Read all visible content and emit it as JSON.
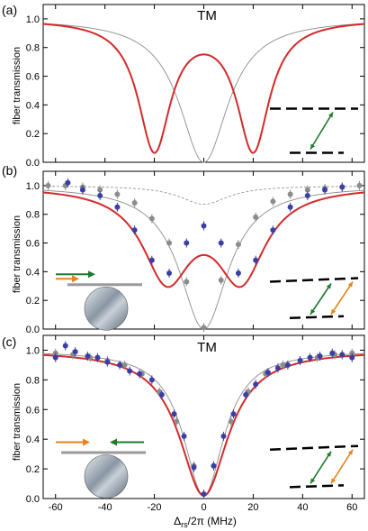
{
  "chart_data": [
    {
      "panel": "(a)",
      "type": "line",
      "title": "TM",
      "ylabel": "fiber transmission",
      "xlim": [
        -65,
        65
      ],
      "ylim": [
        0,
        1.1
      ],
      "yticks": [
        "0.0",
        "0.2",
        "0.4",
        "0.6",
        "0.8",
        "1.0"
      ],
      "series": [
        {
          "style": "gray-thin",
          "model": {
            "kind": "lorentz",
            "center": 0,
            "width": 12,
            "depth": 1.0
          }
        },
        {
          "style": "red",
          "model": {
            "kind": "split",
            "centers": [
              -20,
              20
            ],
            "width": 8,
            "depth": 0.9
          }
        }
      ],
      "inset": {
        "levels": 2,
        "arrows": [
          "green"
        ]
      }
    },
    {
      "panel": "(b)",
      "type": "line",
      "ylabel": "fiber transmission",
      "xlim": [
        -65,
        65
      ],
      "ylim": [
        0,
        1.1
      ],
      "yticks": [
        "0.0",
        "0.2",
        "0.4",
        "0.6",
        "0.8",
        "1.0"
      ],
      "series": [
        {
          "style": "gray-dashed",
          "model": {
            "kind": "lorentz",
            "center": 0,
            "width": 12,
            "depth": 0.13
          }
        },
        {
          "style": "gray-thin",
          "model": {
            "kind": "lorentz",
            "center": 0,
            "width": 12,
            "depth": 1.0
          }
        },
        {
          "style": "red",
          "model": {
            "kind": "split",
            "centers": [
              -15,
              15
            ],
            "width": 12,
            "depth": 0.62
          }
        }
      ],
      "points_gray": {
        "x": [
          -63,
          -56,
          -49,
          -42,
          -35,
          -28,
          -21,
          -14,
          -7,
          0,
          7,
          14,
          21,
          28,
          35,
          42,
          49,
          56,
          63
        ],
        "y": [
          1.0,
          1.0,
          0.99,
          0.97,
          0.94,
          0.88,
          0.77,
          0.6,
          0.33,
          0.01,
          0.34,
          0.59,
          0.78,
          0.89,
          0.94,
          0.97,
          0.98,
          0.99,
          1.0
        ]
      },
      "points_blue": {
        "x": [
          -55,
          -49,
          -42,
          -35,
          -28,
          -21,
          -14,
          -7,
          0,
          7,
          14,
          21,
          28,
          35,
          42,
          49,
          56
        ],
        "y": [
          1.02,
          0.97,
          0.93,
          0.85,
          0.69,
          0.48,
          0.39,
          0.6,
          0.72,
          0.6,
          0.39,
          0.48,
          0.69,
          0.85,
          0.93,
          0.97,
          0.99
        ]
      },
      "inset": {
        "levels": 2,
        "arrows": [
          "green",
          "orange"
        ]
      }
    },
    {
      "panel": "(c)",
      "type": "line",
      "title": "TM",
      "ylabel": "fiber transmission",
      "xlabel": "Δrs/2π (MHz)",
      "xlim": [
        -65,
        65
      ],
      "ylim": [
        0,
        1.1
      ],
      "xticks": [
        "-60",
        "-40",
        "-20",
        "0",
        "20",
        "40",
        "60"
      ],
      "yticks": [
        "0.0",
        "0.2",
        "0.4",
        "0.6",
        "0.8",
        "1.0"
      ],
      "series": [
        {
          "style": "gray-thin",
          "model": {
            "kind": "lorentz",
            "center": 0,
            "width": 10,
            "depth": 0.98
          }
        },
        {
          "style": "red",
          "model": {
            "kind": "lorentz",
            "center": 0,
            "width": 12,
            "depth": 0.98
          }
        }
      ],
      "points_gray": {
        "x": [
          -60,
          -53,
          -46,
          -39,
          -32,
          -25,
          -18,
          -11,
          -4,
          0,
          4,
          11,
          18,
          25,
          32,
          39,
          46,
          53,
          60
        ],
        "y": [
          0.98,
          0.97,
          0.95,
          0.93,
          0.9,
          0.84,
          0.72,
          0.52,
          0.22,
          0.03,
          0.22,
          0.52,
          0.72,
          0.84,
          0.9,
          0.93,
          0.95,
          0.97,
          0.98
        ]
      },
      "points_blue": {
        "x": [
          -60,
          -56,
          -52,
          -47,
          -43,
          -39,
          -34,
          -30,
          -26,
          -21,
          -17,
          -12,
          -8,
          -4,
          0,
          4,
          8,
          12,
          17,
          21,
          26,
          30,
          34,
          39,
          43,
          47,
          52,
          56,
          60
        ],
        "y": [
          0.95,
          1.03,
          0.99,
          0.96,
          0.95,
          0.92,
          0.9,
          0.86,
          0.84,
          0.8,
          0.7,
          0.57,
          0.42,
          0.21,
          0.03,
          0.22,
          0.42,
          0.57,
          0.7,
          0.77,
          0.85,
          0.88,
          0.9,
          0.93,
          0.95,
          0.96,
          0.98,
          0.97,
          0.95
        ]
      },
      "inset": {
        "levels": 2,
        "arrows": [
          "green",
          "orange"
        ]
      }
    }
  ]
}
